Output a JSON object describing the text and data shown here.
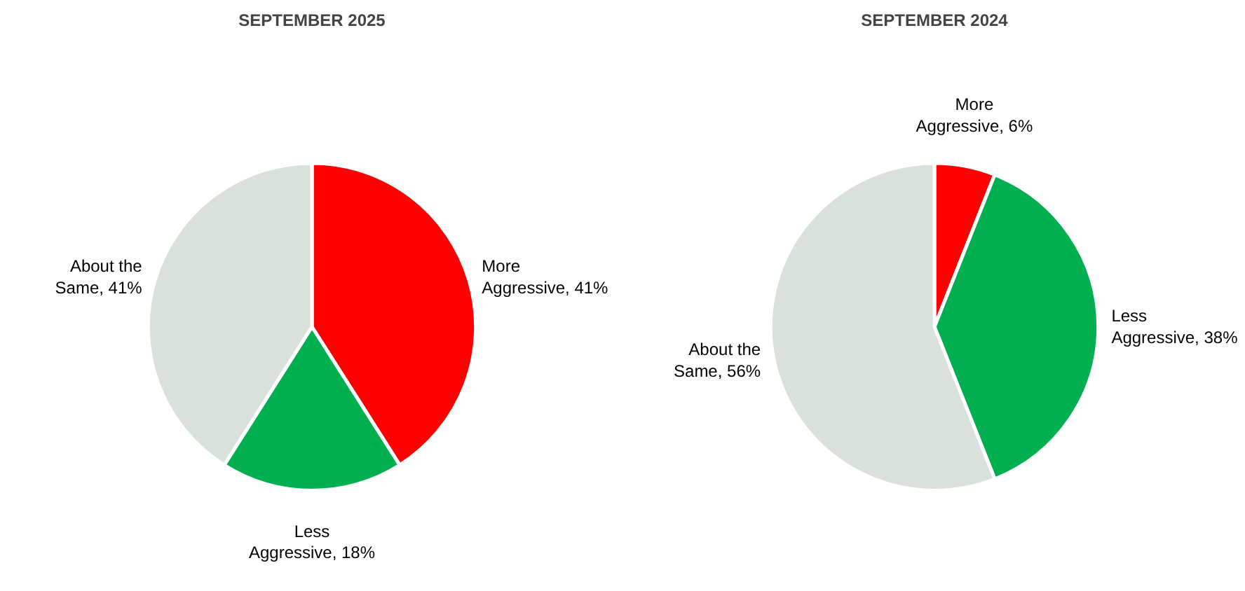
{
  "chart_data": [
    {
      "type": "pie",
      "title": "SEPTEMBER 2025",
      "categories": [
        "More Aggressive",
        "Less Aggressive",
        "About the Same"
      ],
      "values": [
        41,
        18,
        41
      ],
      "value_labels": [
        "41%",
        "18%",
        "41%"
      ],
      "colors": [
        "#ff0000",
        "#00b050",
        "#d9e1da"
      ]
    },
    {
      "type": "pie",
      "title": "SEPTEMBER 2024",
      "categories": [
        "More Aggressive",
        "Less Aggressive",
        "About the Same"
      ],
      "values": [
        6,
        38,
        56
      ],
      "value_labels": [
        "6%",
        "38%",
        "56%"
      ],
      "colors": [
        "#ff0000",
        "#00b050",
        "#d9e1da"
      ]
    }
  ]
}
